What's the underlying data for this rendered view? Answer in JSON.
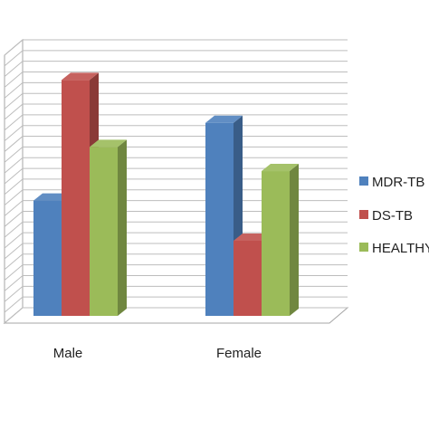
{
  "chart_data": {
    "type": "bar",
    "categories": [
      "Male",
      "Female"
    ],
    "series": [
      {
        "name": "MDR-TB",
        "values": [
          40,
          69
        ]
      },
      {
        "name": "DS-TB",
        "values": [
          85,
          25
        ]
      },
      {
        "name": "HEALTHY",
        "values": [
          60,
          51
        ]
      }
    ],
    "legend_labels": [
      "MDR-TB",
      "DS-TB",
      "HEALTHY"
    ],
    "ylim": [
      0,
      100
    ],
    "grid": true,
    "legend_position": "right",
    "three_d": true,
    "colors": {
      "MDR-TB": "#4f81bd",
      "DS-TB": "#c0504d",
      "HEALTHY": "#9bbb59",
      "grid": "#bdbdbd",
      "axis": "#a6a6a6"
    }
  }
}
